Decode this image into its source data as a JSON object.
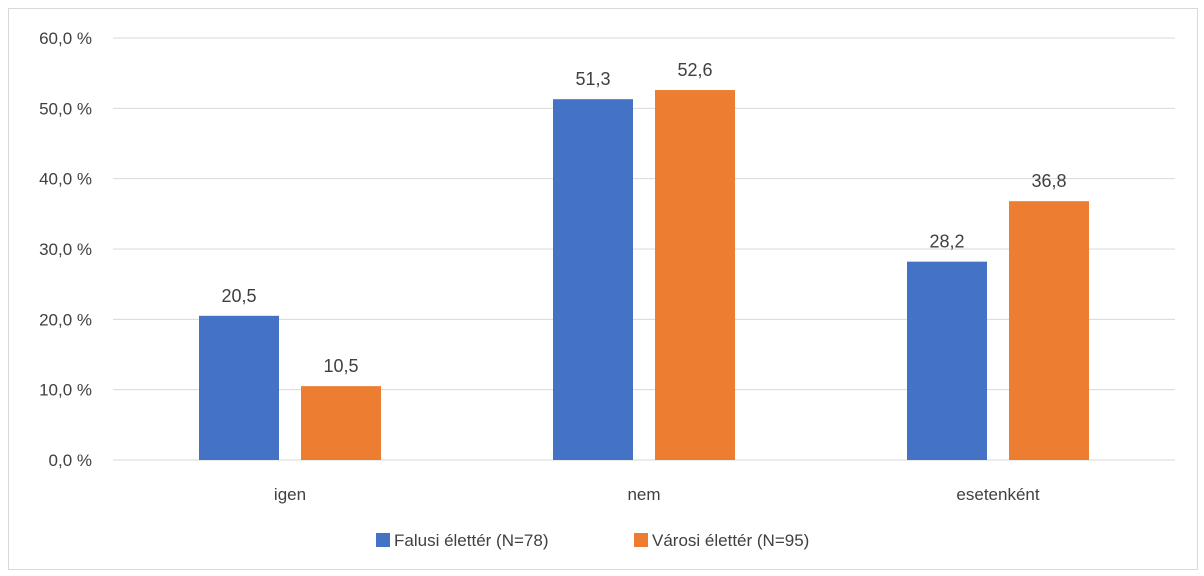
{
  "caption": "",
  "chart_data": {
    "type": "bar",
    "categories": [
      "igen",
      "nem",
      "esetenként"
    ],
    "series": [
      {
        "name": "Falusi élettér (N=78)",
        "values": [
          20.5,
          51.3,
          28.2
        ],
        "color": "#4472c4"
      },
      {
        "name": "Városi élettér (N=95)",
        "values": [
          10.5,
          52.6,
          36.8
        ],
        "color": "#ed7d31"
      }
    ],
    "data_labels": [
      [
        "20,5",
        "51,3",
        "28,2"
      ],
      [
        "10,5",
        "52,6",
        "36,8"
      ]
    ],
    "yticks": [
      0,
      10,
      20,
      30,
      40,
      50,
      60
    ],
    "ytick_labels": [
      "0,0 %",
      "10,0 %",
      "20,0 %",
      "30,0 %",
      "40,0 %",
      "50,0 %",
      "60,0 %"
    ],
    "ylim": [
      0,
      60
    ],
    "title": "",
    "xlabel": "",
    "ylabel": "",
    "grid": true,
    "gridline_color": "#d9d9d9",
    "legend_position": "bottom"
  }
}
